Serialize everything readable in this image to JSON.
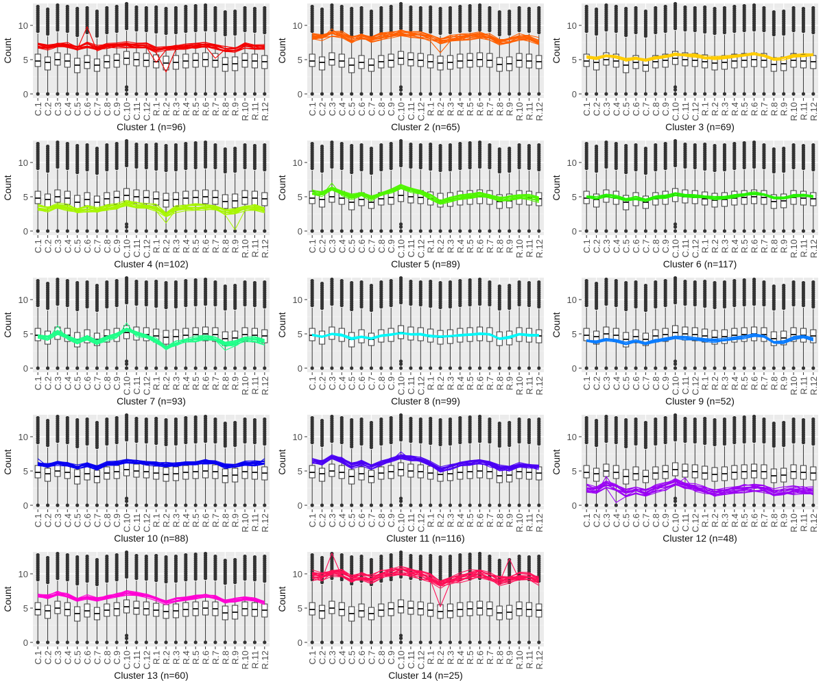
{
  "figure": {
    "ylabel": "Count",
    "y_ticks": [
      0,
      5,
      10
    ],
    "ylim": [
      -0.6,
      13.2
    ],
    "categories": [
      "C.1",
      "C.2",
      "C.3",
      "C.4",
      "C.5",
      "C.6",
      "C.7",
      "C.8",
      "C.9",
      "C.10",
      "C.11",
      "C.12",
      "R.1",
      "R.2",
      "R.3",
      "R.4",
      "R.5",
      "R.6",
      "R.7",
      "R.8",
      "R.9",
      "R.10",
      "R.11",
      "R.12"
    ]
  },
  "chart_data": {
    "type": "boxplot-with-profile-lines",
    "grid": true,
    "background": "#ebebeb",
    "ylabel": "Count",
    "ylim": [
      -0.6,
      13.2
    ],
    "categories": [
      "C.1",
      "C.2",
      "C.3",
      "C.4",
      "C.5",
      "C.6",
      "C.7",
      "C.8",
      "C.9",
      "C.10",
      "C.11",
      "C.12",
      "R.1",
      "R.2",
      "R.3",
      "R.4",
      "R.5",
      "R.6",
      "R.7",
      "R.8",
      "R.9",
      "R.10",
      "R.11",
      "R.12"
    ],
    "boxes": {
      "q1": [
        4.0,
        3.5,
        4.2,
        3.9,
        3.1,
        3.7,
        3.3,
        3.8,
        3.9,
        4.3,
        4.1,
        4.0,
        3.8,
        3.5,
        3.6,
        3.8,
        3.9,
        4.0,
        3.9,
        3.3,
        3.4,
        3.9,
        3.8,
        3.7
      ],
      "median": [
        4.8,
        4.6,
        5.0,
        4.8,
        4.2,
        4.6,
        4.2,
        4.7,
        4.9,
        5.2,
        5.0,
        4.9,
        4.7,
        4.5,
        4.6,
        4.8,
        4.9,
        5.0,
        4.9,
        4.3,
        4.4,
        4.9,
        4.8,
        4.7
      ],
      "q3": [
        5.8,
        5.4,
        6.0,
        5.8,
        5.2,
        5.6,
        5.1,
        5.6,
        5.8,
        6.2,
        6.0,
        5.9,
        5.7,
        5.5,
        5.6,
        5.8,
        5.9,
        6.0,
        5.9,
        5.3,
        5.4,
        5.9,
        5.8,
        5.6
      ],
      "whisker_low": [
        0,
        0,
        0,
        0,
        0,
        0,
        0,
        0,
        0,
        0,
        0,
        0,
        0,
        0,
        0,
        0,
        0,
        0,
        0,
        0,
        0,
        0,
        0,
        0
      ],
      "whisker_high": [
        8.8,
        8.4,
        9.0,
        8.8,
        8.2,
        8.6,
        8.1,
        8.6,
        8.8,
        9.2,
        9.0,
        8.9,
        8.7,
        8.5,
        8.6,
        8.8,
        8.9,
        9.0,
        8.9,
        8.3,
        8.4,
        8.9,
        8.8,
        8.6
      ],
      "outlier_max": [
        12.8,
        12.4,
        13.2,
        12.9,
        12.6,
        12.8,
        12.2,
        12.7,
        12.9,
        13.2,
        12.9,
        12.8,
        12.8,
        12.6,
        12.6,
        12.8,
        13.0,
        13.0,
        12.8,
        12.1,
        12.3,
        12.8,
        12.7,
        12.6
      ]
    },
    "clusters": [
      {
        "name": "Cluster 1 (n=96)",
        "color": "#f20000",
        "spread": 0.6,
        "n_lines": 14,
        "profile": [
          7.0,
          6.8,
          7.2,
          7.1,
          6.7,
          7.1,
          6.6,
          7.0,
          7.1,
          7.2,
          7.0,
          7.0,
          6.4,
          6.6,
          6.8,
          6.9,
          7.0,
          7.1,
          6.9,
          6.5,
          6.5,
          7.0,
          6.9,
          6.8
        ],
        "spikes": [
          {
            "i": 5,
            "v": 9.8
          },
          {
            "i": 13,
            "v": 3.2
          },
          {
            "i": 12,
            "v": 4.6
          },
          {
            "i": 18,
            "v": 5.2
          }
        ]
      },
      {
        "name": "Cluster 2 (n=65)",
        "color": "#ff5f00",
        "spread": 0.8,
        "n_lines": 14,
        "profile": [
          8.4,
          8.3,
          8.8,
          8.6,
          8.0,
          8.4,
          8.0,
          8.4,
          8.6,
          8.9,
          8.7,
          8.6,
          8.2,
          7.6,
          8.0,
          8.2,
          8.4,
          8.6,
          8.3,
          7.6,
          7.8,
          8.3,
          8.2,
          7.6
        ],
        "spikes": [
          {
            "i": 2,
            "v": 9.5
          },
          {
            "i": 13,
            "v": 6.0
          }
        ]
      },
      {
        "name": "Cluster 3 (n=69)",
        "color": "#ffcc00",
        "spread": 0.35,
        "n_lines": 10,
        "profile": [
          5.4,
          5.2,
          5.6,
          5.4,
          5.0,
          5.2,
          4.9,
          5.3,
          5.5,
          5.8,
          5.7,
          5.6,
          5.3,
          5.2,
          5.3,
          5.5,
          5.7,
          5.8,
          5.6,
          5.1,
          5.2,
          5.6,
          5.6,
          5.7
        ],
        "spikes": []
      },
      {
        "name": "Cluster 4 (n=102)",
        "color": "#a7f600",
        "spread": 0.7,
        "n_lines": 14,
        "profile": [
          3.4,
          3.2,
          3.6,
          3.4,
          3.0,
          3.3,
          3.0,
          3.4,
          3.6,
          4.1,
          3.8,
          3.6,
          3.4,
          2.4,
          3.2,
          3.4,
          3.5,
          3.6,
          3.4,
          2.8,
          2.8,
          3.4,
          3.4,
          3.0
        ],
        "spikes": [
          {
            "i": 20,
            "v": 0.2
          },
          {
            "i": 13,
            "v": 1.2
          }
        ]
      },
      {
        "name": "Cluster 5 (n=89)",
        "color": "#50f600",
        "spread": 0.6,
        "n_lines": 14,
        "profile": [
          5.6,
          5.4,
          6.2,
          5.6,
          5.0,
          5.4,
          4.8,
          5.4,
          5.8,
          6.4,
          6.0,
          5.7,
          5.0,
          4.2,
          4.6,
          5.0,
          5.2,
          5.4,
          5.0,
          4.6,
          4.8,
          5.0,
          5.0,
          4.6
        ],
        "spikes": [
          {
            "i": 2,
            "v": 7.0
          }
        ]
      },
      {
        "name": "Cluster 6 (n=117)",
        "color": "#26f000",
        "spread": 0.35,
        "n_lines": 10,
        "profile": [
          5.0,
          4.8,
          5.2,
          5.0,
          4.6,
          4.8,
          4.5,
          4.9,
          5.0,
          5.4,
          5.2,
          5.1,
          5.0,
          4.8,
          4.9,
          5.1,
          5.3,
          5.5,
          5.3,
          4.8,
          4.8,
          5.2,
          5.2,
          5.1
        ],
        "spikes": []
      },
      {
        "name": "Cluster 7 (n=93)",
        "color": "#20ff8a",
        "spread": 0.6,
        "n_lines": 14,
        "profile": [
          4.6,
          4.4,
          5.2,
          4.6,
          3.8,
          4.4,
          3.8,
          4.4,
          4.8,
          5.6,
          5.0,
          4.6,
          4.0,
          3.0,
          3.6,
          4.0,
          4.2,
          4.4,
          4.2,
          3.6,
          3.6,
          4.2,
          4.2,
          3.8
        ],
        "spikes": [
          {
            "i": 9,
            "v": 6.6
          },
          {
            "i": 2,
            "v": 6.2
          },
          {
            "i": 19,
            "v": 2.6
          }
        ]
      },
      {
        "name": "Cluster 8 (n=99)",
        "color": "#00f8f8",
        "spread": 0.25,
        "n_lines": 10,
        "profile": [
          4.8,
          4.6,
          5.0,
          4.8,
          4.3,
          4.6,
          4.3,
          4.7,
          4.9,
          5.1,
          5.0,
          4.9,
          4.7,
          4.6,
          4.7,
          4.8,
          4.9,
          5.0,
          4.9,
          4.3,
          4.5,
          4.9,
          4.8,
          4.8
        ],
        "spikes": []
      },
      {
        "name": "Cluster 9 (n=52)",
        "color": "#0a7cff",
        "spread": 0.35,
        "n_lines": 10,
        "profile": [
          4.0,
          3.8,
          4.2,
          4.0,
          3.6,
          3.9,
          3.6,
          4.0,
          4.2,
          4.5,
          4.4,
          4.3,
          4.1,
          4.0,
          4.1,
          4.3,
          4.5,
          4.8,
          4.6,
          3.8,
          3.8,
          4.4,
          4.6,
          4.2
        ],
        "spikes": []
      },
      {
        "name": "Cluster 10 (n=88)",
        "color": "#0800f0",
        "spread": 0.5,
        "n_lines": 14,
        "profile": [
          6.0,
          5.8,
          6.2,
          6.0,
          5.5,
          5.9,
          5.5,
          6.0,
          6.1,
          6.4,
          6.3,
          6.2,
          6.0,
          5.9,
          6.0,
          6.1,
          6.2,
          6.4,
          6.2,
          5.7,
          5.8,
          6.1,
          6.1,
          6.2
        ],
        "spikes": [
          {
            "i": 0,
            "v": 6.8
          },
          {
            "i": 23,
            "v": 6.8
          }
        ]
      },
      {
        "name": "Cluster 11 (n=116)",
        "color": "#4b00f4",
        "spread": 0.6,
        "n_lines": 14,
        "profile": [
          6.4,
          6.2,
          7.0,
          6.6,
          5.8,
          6.2,
          5.6,
          6.2,
          6.6,
          7.0,
          6.8,
          6.6,
          6.0,
          5.2,
          5.6,
          6.0,
          6.2,
          6.4,
          6.0,
          5.4,
          5.4,
          5.8,
          5.8,
          5.6
        ],
        "spikes": [
          {
            "i": 9,
            "v": 7.8
          }
        ]
      },
      {
        "name": "Cluster 12 (n=48)",
        "color": "#9a00f4",
        "spread": 0.9,
        "n_lines": 16,
        "profile": [
          2.4,
          2.2,
          3.0,
          2.6,
          1.8,
          2.2,
          1.8,
          2.4,
          2.8,
          3.4,
          2.8,
          2.6,
          2.2,
          1.8,
          2.0,
          2.3,
          2.4,
          2.6,
          2.4,
          1.8,
          2.0,
          2.2,
          2.2,
          2.0
        ],
        "spikes": [
          {
            "i": 3,
            "v": 0.4
          },
          {
            "i": 2,
            "v": 4.2
          },
          {
            "i": 10,
            "v": 4.0
          }
        ]
      },
      {
        "name": "Cluster 13 (n=60)",
        "color": "#ff00d4",
        "spread": 0.45,
        "n_lines": 12,
        "profile": [
          6.8,
          6.6,
          7.2,
          6.8,
          6.2,
          6.6,
          6.2,
          6.6,
          6.9,
          7.2,
          7.0,
          6.8,
          6.4,
          5.8,
          6.2,
          6.4,
          6.6,
          6.8,
          6.6,
          6.0,
          6.2,
          6.4,
          6.2,
          5.8
        ],
        "spikes": []
      },
      {
        "name": "Cluster 14 (n=25)",
        "color": "#ff0f57",
        "spread": 1.0,
        "n_lines": 16,
        "profile": [
          9.8,
          9.6,
          10.2,
          10.0,
          9.2,
          9.6,
          9.2,
          9.8,
          10.2,
          10.4,
          10.2,
          10.0,
          9.4,
          8.4,
          9.0,
          9.4,
          9.8,
          10.0,
          9.6,
          9.0,
          9.2,
          9.6,
          9.6,
          9.0
        ],
        "spikes": [
          {
            "i": 2,
            "v": 13.0
          },
          {
            "i": 13,
            "v": 5.2
          },
          {
            "i": 20,
            "v": 12.2
          }
        ]
      }
    ]
  }
}
